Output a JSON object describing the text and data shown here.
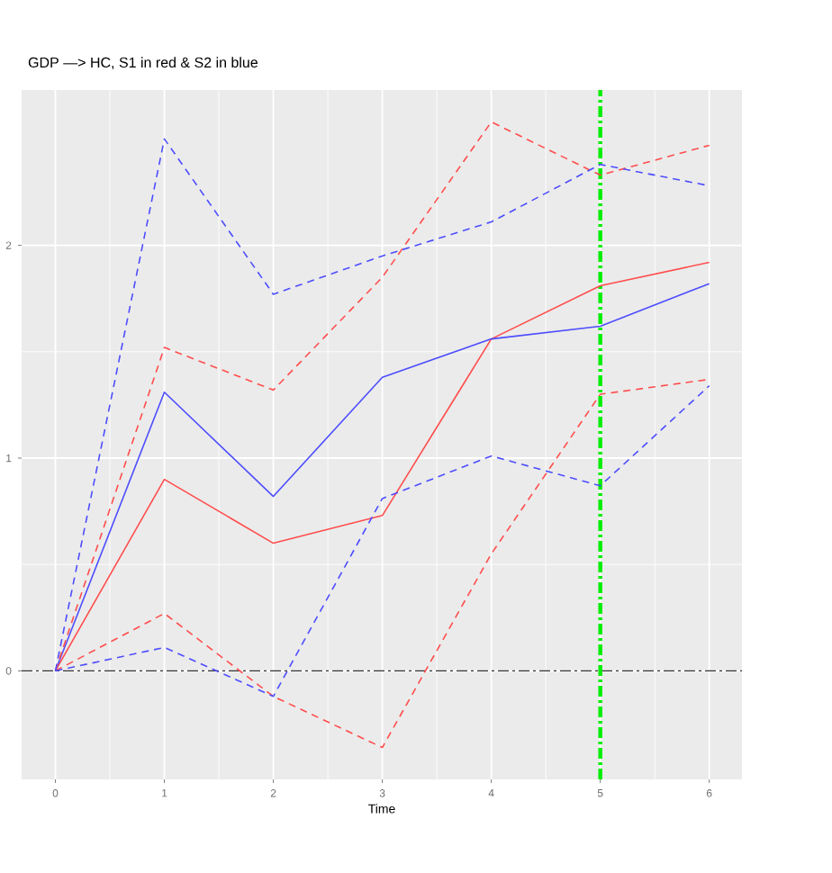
{
  "chart_data": {
    "type": "line",
    "title": "GDP —> HC, S1 in red & S2 in blue",
    "xlabel": "Time",
    "x": [
      0,
      1,
      2,
      3,
      4,
      5,
      6
    ],
    "series": [
      {
        "color": "#ff4d4d",
        "line_style": "solid",
        "values": [
          0,
          0.9,
          0.6,
          0.73,
          1.56,
          1.81,
          1.92
        ]
      },
      {
        "color": "#4d4dff",
        "line_style": "solid",
        "values": [
          0,
          1.31,
          0.82,
          1.38,
          1.56,
          1.62,
          1.82
        ]
      },
      {
        "color": "#ff4d4d",
        "line_style": "dashed",
        "values": [
          0,
          1.52,
          1.32,
          1.85,
          2.58,
          2.33,
          2.47
        ]
      },
      {
        "color": "#ff4d4d",
        "line_style": "dashed",
        "values": [
          0,
          0.27,
          -0.12,
          -0.36,
          0.55,
          1.3,
          1.37
        ]
      },
      {
        "color": "#4d4dff",
        "line_style": "dashed",
        "values": [
          0,
          2.5,
          1.77,
          1.95,
          2.11,
          2.38,
          2.28
        ]
      },
      {
        "color": "#4d4dff",
        "line_style": "dashed",
        "values": [
          0,
          0.11,
          -0.12,
          0.81,
          1.01,
          0.87,
          1.34
        ]
      }
    ],
    "xlim": [
      -0.31,
      6.3
    ],
    "ylim": [
      -0.51,
      2.73
    ],
    "xticks": [
      0,
      1,
      2,
      3,
      4,
      5,
      6
    ],
    "yticks": [
      0,
      1,
      2
    ],
    "grid": true,
    "ref_lines": [
      {
        "axis": "y",
        "value": 0,
        "color": "#333333",
        "line_style": "dashdot"
      },
      {
        "axis": "x",
        "value": 5,
        "color": "#00ee00",
        "line_style": "dashdot"
      }
    ]
  }
}
